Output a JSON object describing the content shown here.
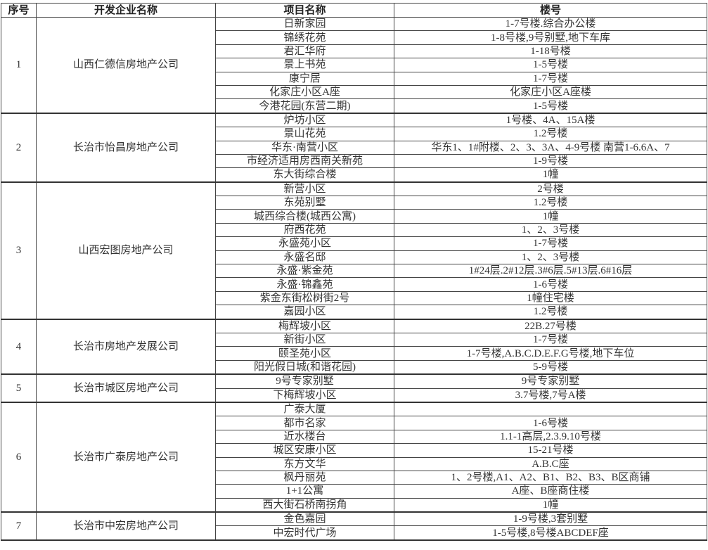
{
  "headers": [
    "序号",
    "开发企业名称",
    "项目名称",
    "楼号"
  ],
  "groups": [
    {
      "no": "1",
      "company": "山西仁德信房地产公司",
      "projects": [
        {
          "name": "日新家园",
          "buildings": "1-7号楼.综合办公楼"
        },
        {
          "name": "锦绣花苑",
          "buildings": "1-8号楼,9号别墅,地下车库"
        },
        {
          "name": "君汇华府",
          "buildings": "1-18号楼"
        },
        {
          "name": "景上书苑",
          "buildings": "1-5号楼"
        },
        {
          "name": "康宁居",
          "buildings": "1-7号楼"
        },
        {
          "name": "化家庄小区A座",
          "buildings": "化家庄小区A座楼"
        },
        {
          "name": "今港花园(东营二期)",
          "buildings": "1-5号楼"
        }
      ]
    },
    {
      "no": "2",
      "company": "长治市怡昌房地产公司",
      "projects": [
        {
          "name": "炉坊小区",
          "buildings": "1号楼、4A、15A楼"
        },
        {
          "name": "景山花苑",
          "buildings": "1.2号楼"
        },
        {
          "name": "华东·南营小区",
          "buildings": "华东1、1#附楼、2、3、3A、4-9号楼  南营1-6.6A、7"
        },
        {
          "name": "市经济适用房西南关新苑",
          "buildings": "1-9号楼"
        },
        {
          "name": "东大街综合楼",
          "buildings": "1幢"
        }
      ]
    },
    {
      "no": "3",
      "company": "山西宏图房地产公司",
      "projects": [
        {
          "name": "新营小区",
          "buildings": "2号楼"
        },
        {
          "name": "东苑别墅",
          "buildings": "1.2号楼"
        },
        {
          "name": "城西综合楼(城西公寓)",
          "buildings": "1幢"
        },
        {
          "name": "府西花苑",
          "buildings": "1、2、3号楼"
        },
        {
          "name": "永盛苑小区",
          "buildings": "1-7号楼"
        },
        {
          "name": "永盛名邸",
          "buildings": "1、2、3号楼"
        },
        {
          "name": "永盛·紫金苑",
          "buildings": "1#24层.2#12层.3#6层.5#13层.6#16层"
        },
        {
          "name": "永盛·锦鑫苑",
          "buildings": "1-6号楼"
        },
        {
          "name": "紫金东街松树街2号",
          "buildings": "1幢住宅楼"
        },
        {
          "name": "嘉园小区",
          "buildings": "1.2号楼"
        }
      ]
    },
    {
      "no": "4",
      "company": "长治市房地产发展公司",
      "projects": [
        {
          "name": "梅辉坡小区",
          "buildings": "22B.27号楼"
        },
        {
          "name": "新街小区",
          "buildings": "1-7号楼"
        },
        {
          "name": "颐圣苑小区",
          "buildings": "1-7号楼,A.B.C.D.E.F.G号楼,地下车位"
        },
        {
          "name": "阳光假日城(和谐花园)",
          "buildings": "5-9号楼"
        }
      ]
    },
    {
      "no": "5",
      "company": "长治市城区房地产公司",
      "projects": [
        {
          "name": "9号专家别墅",
          "buildings": "9号专家别墅"
        },
        {
          "name": "下梅辉坡小区",
          "buildings": "3.7号楼,7号A楼"
        }
      ]
    },
    {
      "no": "6",
      "company": "长治市广泰房地产公司",
      "projects": [
        {
          "name": "广泰大厦",
          "buildings": ""
        },
        {
          "name": "都市名家",
          "buildings": "1-6号楼"
        },
        {
          "name": "近水楼台",
          "buildings": "1.1-1高层,2.3.9.10号楼"
        },
        {
          "name": "城区安康小区",
          "buildings": "15-21号楼"
        },
        {
          "name": "东方文华",
          "buildings": "A.B.C座"
        },
        {
          "name": "枫丹丽苑",
          "buildings": "1、2号楼,A1、A2、B1、B2、B3、B区商铺"
        },
        {
          "name": "1+1公寓",
          "buildings": "A座、B座商住楼"
        },
        {
          "name": "西大街石桥南拐角",
          "buildings": "1幢"
        }
      ]
    },
    {
      "no": "7",
      "company": "长治市中宏房地产公司",
      "projects": [
        {
          "name": "金色嘉园",
          "buildings": "1-9号楼,3套别墅"
        },
        {
          "name": "中宏时代广场",
          "buildings": "1-5号楼,8号楼ABCDEF座"
        }
      ]
    }
  ]
}
